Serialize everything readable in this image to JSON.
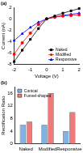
{
  "chart_data": [
    {
      "type": "line",
      "title": "(a)",
      "x_label": "Voltage (V)",
      "y_label": "Current (nA)",
      "x": [
        -2,
        -1.5,
        -1,
        -0.5,
        0,
        0.5,
        1,
        1.5,
        2
      ],
      "series": [
        {
          "name": "Naked",
          "color": "#000000",
          "marker": "square",
          "values": [
            -7.5,
            -5.5,
            -3.6,
            -1.7,
            0,
            0.5,
            1.0,
            1.4,
            1.8
          ]
        },
        {
          "name": "Modified",
          "color": "#ff0000",
          "marker": "circle",
          "values": [
            -6.2,
            -4.2,
            -2.5,
            -1.0,
            0,
            0.3,
            0.5,
            0.6,
            0.7
          ]
        },
        {
          "name": "Responsive",
          "color": "#0000ff",
          "marker": "triangle",
          "values": [
            -3.8,
            -2.6,
            -1.5,
            -0.6,
            0,
            0.3,
            0.6,
            0.8,
            1.0
          ]
        }
      ],
      "xlim": [
        -2,
        2
      ],
      "xticks": [
        -2,
        -1,
        0,
        1,
        2
      ],
      "ylim": [
        -8,
        2
      ],
      "yticks": [
        -8,
        -6,
        -4,
        -2,
        0,
        2
      ],
      "grid": false,
      "legend": "lower right"
    },
    {
      "type": "bar",
      "title": "(b)",
      "y_label": "Rectification Ratio",
      "categories": [
        "Naked",
        "Modified",
        "Responsive"
      ],
      "series": [
        {
          "name": "Conical",
          "color": "#7fb2e5",
          "values": [
            6.0,
            6.0,
            4.0
          ]
        },
        {
          "name": "Funnel-shaped",
          "color": "#f07a7a",
          "values": [
            7.0,
            16.0,
            10.0
          ]
        }
      ],
      "ylim": [
        0,
        18
      ],
      "yticks": [
        0,
        4,
        8,
        12,
        16
      ],
      "grid": false,
      "legend": "upper left"
    }
  ]
}
